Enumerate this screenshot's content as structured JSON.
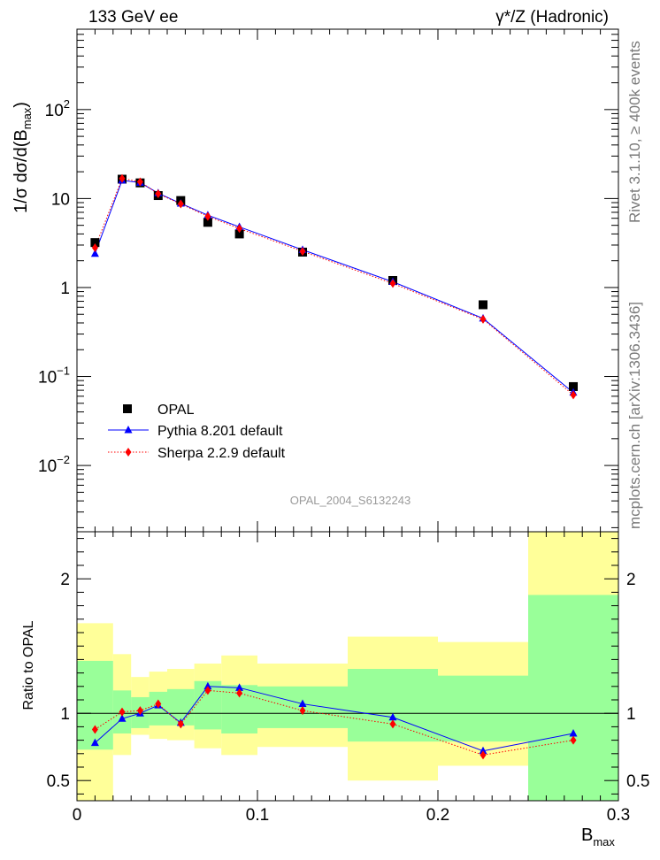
{
  "header": {
    "left": "133 GeV ee",
    "right": "γ*/Z (Hadronic)"
  },
  "side_text": {
    "rivet": "Rivet 3.1.10, ≥ 400k events",
    "mcplots": "mcplots.cern.ch [arXiv:1306.3436]"
  },
  "analysis_label": "OPAL_2004_S6132243",
  "colors": {
    "data": "#000000",
    "pythia": "#0000ff",
    "sherpa": "#ff0000",
    "band_inner": "#99ff99",
    "band_outer": "#ffff99"
  },
  "chart_data": [
    {
      "type": "line",
      "panel": "main",
      "y_scale": "log",
      "ylabel": "1/σ dσ/d(B_max)",
      "xlim": [
        0,
        0.3
      ],
      "ylim": [
        0.0018,
        800
      ],
      "y_tick_labels": [
        "10^-2",
        "10^-1",
        "1",
        "10",
        "10^2"
      ],
      "x_bin_edges": [
        0.0,
        0.02,
        0.03,
        0.04,
        0.05,
        0.065,
        0.08,
        0.1,
        0.15,
        0.2,
        0.25,
        0.3
      ],
      "x": [
        0.01,
        0.025,
        0.035,
        0.045,
        0.0575,
        0.0725,
        0.09,
        0.125,
        0.175,
        0.225,
        0.275
      ],
      "series": [
        {
          "name": "OPAL",
          "marker": "square",
          "values": [
            3.2,
            16.5,
            15.0,
            10.8,
            9.5,
            5.4,
            4.0,
            2.5,
            1.2,
            0.64,
            0.077
          ]
        },
        {
          "name": "Pythia 8.201 default",
          "marker": "triangle",
          "values": [
            2.4,
            16.0,
            15.1,
            11.5,
            8.8,
            6.5,
            4.8,
            2.65,
            1.16,
            0.45,
            0.066
          ]
        },
        {
          "name": "Sherpa 2.2.9 default",
          "marker": "diamond",
          "values": [
            2.8,
            16.8,
            15.4,
            11.3,
            8.7,
            6.3,
            4.6,
            2.55,
            1.11,
            0.44,
            0.062
          ]
        }
      ],
      "legend_position": "bottom-left"
    },
    {
      "type": "line",
      "panel": "ratio",
      "ylabel": "Ratio to OPAL",
      "xlabel": "B_max",
      "xlim": [
        0,
        0.3
      ],
      "ylim": [
        0.35,
        2.35
      ],
      "y_ticks": [
        0.5,
        1,
        2
      ],
      "x_ticks": [
        0,
        0.1,
        0.2,
        0.3
      ],
      "x_tick_labels": [
        "0",
        "0.1",
        "0.2",
        "0.3"
      ],
      "reference_line": 1,
      "bands": {
        "inner": [
          [
            0.73,
            1.39
          ],
          [
            0.85,
            1.17
          ],
          [
            0.89,
            1.12
          ],
          [
            0.91,
            1.16
          ],
          [
            0.91,
            1.18
          ],
          [
            0.88,
            1.24
          ],
          [
            0.85,
            1.21
          ],
          [
            0.89,
            1.2
          ],
          [
            0.79,
            1.33
          ],
          [
            0.79,
            1.28
          ],
          [
            0,
            1.88
          ]
        ],
        "outer": [
          [
            0,
            1.67
          ],
          [
            0.69,
            1.44
          ],
          [
            0.84,
            1.27
          ],
          [
            0.81,
            1.31
          ],
          [
            0.8,
            1.33
          ],
          [
            0.74,
            1.37
          ],
          [
            0.69,
            1.43
          ],
          [
            0.75,
            1.37
          ],
          [
            0.5,
            1.57
          ],
          [
            0.61,
            1.53
          ],
          [
            0,
            2.4
          ]
        ]
      },
      "x": [
        0.01,
        0.025,
        0.035,
        0.045,
        0.0575,
        0.0725,
        0.09,
        0.125,
        0.175,
        0.225,
        0.275
      ],
      "series": [
        {
          "name": "Pythia 8.201 default",
          "values": [
            0.78,
            0.96,
            1.0,
            1.06,
            0.93,
            1.2,
            1.19,
            1.07,
            0.97,
            0.72,
            0.85
          ]
        },
        {
          "name": "Sherpa 2.2.9 default",
          "values": [
            0.88,
            1.01,
            1.02,
            1.07,
            0.92,
            1.17,
            1.15,
            1.02,
            0.92,
            0.69,
            0.8
          ]
        }
      ]
    }
  ]
}
